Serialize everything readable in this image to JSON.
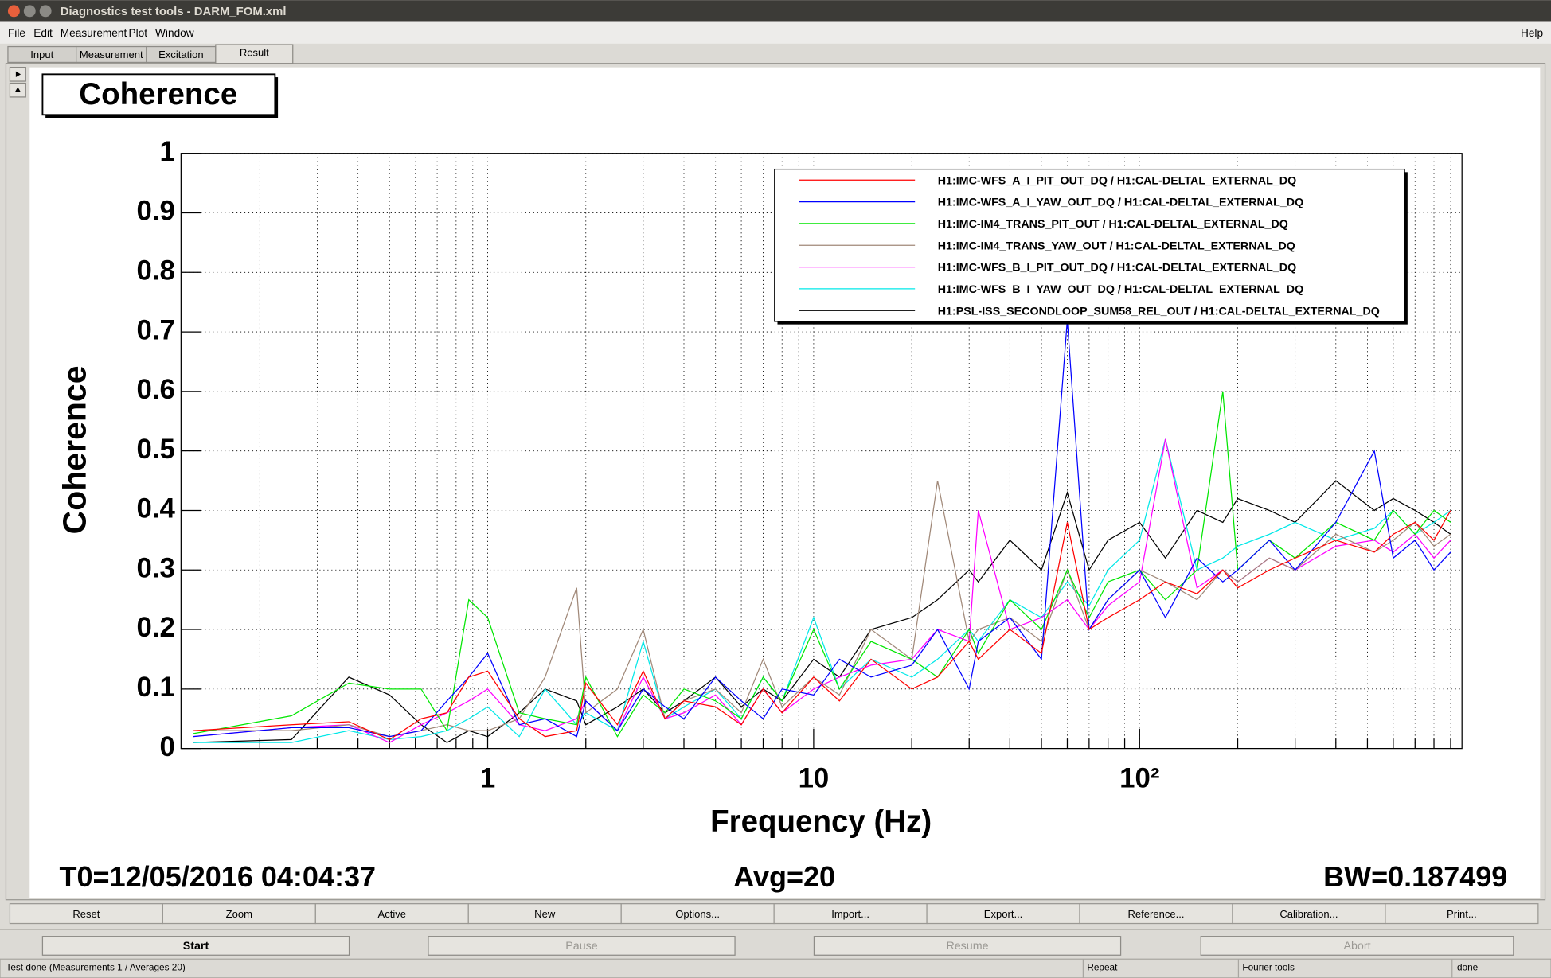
{
  "window": {
    "title": "Diagnostics test tools - DARM_FOM.xml"
  },
  "menu": [
    "File",
    "Edit",
    "Measurement",
    "Plot",
    "Window",
    "Help"
  ],
  "tabs": [
    "Input",
    "Measurement",
    "Excitation",
    "Result"
  ],
  "chart_data": {
    "type": "line",
    "title": "Coherence",
    "xlabel": "Frequency (Hz)",
    "ylabel": "Coherence",
    "log_x": true,
    "grid": true,
    "legend": "top-right",
    "xlim": [
      0.1146,
      975
    ],
    "xticks": [
      1,
      10,
      {
        "value": 100,
        "label": "10²"
      }
    ],
    "xminor_ticks": [
      0.2,
      0.3,
      0.4,
      0.5,
      0.6,
      0.7,
      0.8,
      0.9,
      2,
      3,
      4,
      5,
      6,
      7,
      8,
      9,
      20,
      30,
      40,
      50,
      60,
      70,
      80,
      90,
      200,
      300,
      400,
      500,
      600,
      700,
      800,
      900
    ],
    "ylim": [
      0,
      1
    ],
    "yticks": [
      0,
      0.1,
      0.2,
      0.3,
      0.4,
      0.5,
      0.6,
      0.7,
      0.8,
      0.9,
      1
    ],
    "x": [
      0.125,
      0.25,
      0.375,
      0.5,
      0.625,
      0.75,
      0.875,
      1,
      1.25,
      1.5,
      1.875,
      2,
      2.5,
      3,
      3.5,
      4,
      5,
      6,
      7,
      8,
      10,
      12,
      15,
      20,
      24,
      30,
      32,
      40,
      50,
      60,
      70,
      80,
      100,
      120,
      150,
      180,
      200,
      250,
      300,
      400,
      525,
      600,
      700,
      800,
      900
    ],
    "series": [
      {
        "name": "H1:IMC-WFS_A_I_PIT_OUT_DQ / H1:CAL-DELTAL_EXTERNAL_DQ",
        "color": "#ff0000",
        "values": [
          0.03,
          0.04,
          0.045,
          0.015,
          0.05,
          0.06,
          0.12,
          0.13,
          0.05,
          0.02,
          0.03,
          0.11,
          0.04,
          0.13,
          0.05,
          0.08,
          0.07,
          0.04,
          0.1,
          0.06,
          0.12,
          0.08,
          0.15,
          0.1,
          0.12,
          0.18,
          0.15,
          0.2,
          0.16,
          0.38,
          0.2,
          0.22,
          0.25,
          0.28,
          0.26,
          0.3,
          0.27,
          0.3,
          0.32,
          0.35,
          0.33,
          0.36,
          0.38,
          0.35,
          0.4
        ]
      },
      {
        "name": "H1:IMC-WFS_A_I_YAW_OUT_DQ / H1:CAL-DELTAL_EXTERNAL_DQ",
        "color": "#0000ff",
        "values": [
          0.02,
          0.035,
          0.035,
          0.02,
          0.03,
          0.08,
          0.12,
          0.16,
          0.04,
          0.05,
          0.02,
          0.08,
          0.03,
          0.1,
          0.07,
          0.05,
          0.12,
          0.08,
          0.05,
          0.1,
          0.09,
          0.15,
          0.12,
          0.14,
          0.2,
          0.1,
          0.18,
          0.22,
          0.15,
          0.72,
          0.2,
          0.25,
          0.3,
          0.22,
          0.32,
          0.28,
          0.3,
          0.35,
          0.3,
          0.38,
          0.5,
          0.32,
          0.35,
          0.3,
          0.33
        ]
      },
      {
        "name": "H1:IMC-IM4_TRANS_PIT_OUT / H1:CAL-DELTAL_EXTERNAL_DQ",
        "color": "#00e600",
        "values": [
          0.025,
          0.055,
          0.11,
          0.1,
          0.1,
          0.03,
          0.25,
          0.22,
          0.06,
          0.05,
          0.04,
          0.12,
          0.02,
          0.09,
          0.06,
          0.1,
          0.08,
          0.05,
          0.12,
          0.08,
          0.2,
          0.1,
          0.18,
          0.15,
          0.12,
          0.2,
          0.16,
          0.25,
          0.2,
          0.3,
          0.22,
          0.28,
          0.3,
          0.25,
          0.3,
          0.6,
          0.3,
          0.35,
          0.32,
          0.38,
          0.35,
          0.4,
          0.36,
          0.4,
          0.38
        ]
      },
      {
        "name": "H1:IMC-IM4_TRANS_YAW_OUT / H1:CAL-DELTAL_EXTERNAL_DQ",
        "color": "#a08878",
        "values": [
          0.03,
          0.03,
          0.04,
          0.02,
          0.03,
          0.04,
          0.03,
          0.03,
          0.05,
          0.12,
          0.27,
          0.06,
          0.1,
          0.2,
          0.05,
          0.08,
          0.1,
          0.06,
          0.15,
          0.07,
          0.12,
          0.09,
          0.2,
          0.15,
          0.45,
          0.18,
          0.2,
          0.22,
          0.18,
          0.3,
          0.2,
          0.25,
          0.3,
          0.28,
          0.25,
          0.3,
          0.28,
          0.32,
          0.3,
          0.36,
          0.33,
          0.35,
          0.38,
          0.34,
          0.36
        ]
      },
      {
        "name": "H1:IMC-WFS_B_I_PIT_OUT_DQ / H1:CAL-DELTAL_EXTERNAL_DQ",
        "color": "#ff00ff",
        "values": [
          0.02,
          0.035,
          0.04,
          0.01,
          0.04,
          0.06,
          0.08,
          0.1,
          0.04,
          0.03,
          0.05,
          0.08,
          0.03,
          0.12,
          0.05,
          0.06,
          0.09,
          0.04,
          0.1,
          0.06,
          0.1,
          0.12,
          0.14,
          0.15,
          0.2,
          0.18,
          0.4,
          0.2,
          0.22,
          0.25,
          0.2,
          0.24,
          0.28,
          0.52,
          0.27,
          0.3,
          0.28,
          0.32,
          0.3,
          0.34,
          0.35,
          0.33,
          0.36,
          0.32,
          0.35
        ]
      },
      {
        "name": "H1:IMC-WFS_B_I_YAW_OUT_DQ / H1:CAL-DELTAL_EXTERNAL_DQ",
        "color": "#00e8e8",
        "values": [
          0.01,
          0.01,
          0.03,
          0.015,
          0.02,
          0.03,
          0.05,
          0.07,
          0.02,
          0.1,
          0.04,
          0.06,
          0.03,
          0.18,
          0.05,
          0.07,
          0.1,
          0.05,
          0.12,
          0.08,
          0.22,
          0.1,
          0.15,
          0.12,
          0.15,
          0.2,
          0.18,
          0.25,
          0.22,
          0.28,
          0.24,
          0.3,
          0.35,
          0.52,
          0.3,
          0.32,
          0.34,
          0.36,
          0.38,
          0.35,
          0.37,
          0.4,
          0.36,
          0.38,
          0.4
        ]
      },
      {
        "name": "H1:PSL-ISS_SECONDLOOP_SUM58_REL_OUT / H1:CAL-DELTAL_EXTERNAL_DQ",
        "color": "#000000",
        "values": [
          0.01,
          0.015,
          0.12,
          0.09,
          0.04,
          0.01,
          0.03,
          0.02,
          0.06,
          0.1,
          0.08,
          0.04,
          0.07,
          0.1,
          0.06,
          0.08,
          0.12,
          0.07,
          0.1,
          0.08,
          0.15,
          0.12,
          0.2,
          0.22,
          0.25,
          0.3,
          0.28,
          0.35,
          0.3,
          0.43,
          0.3,
          0.35,
          0.38,
          0.32,
          0.4,
          0.38,
          0.42,
          0.4,
          0.38,
          0.45,
          0.4,
          0.42,
          0.4,
          0.38,
          0.36
        ]
      }
    ]
  },
  "plot_info": [
    "T0=12/05/2016 04:04:37",
    "Avg=20",
    "BW=0.187499"
  ],
  "plot_buttons": [
    "Reset",
    "Zoom",
    "Active",
    "New",
    "Options...",
    "Import...",
    "Export...",
    "Reference...",
    "Calibration...",
    "Print..."
  ],
  "run_buttons": [
    "Start",
    "Pause",
    "Resume",
    "Abort"
  ],
  "status": [
    "Test done (Measurements 1 / Averages 20)",
    "Repeat",
    "Fourier tools",
    "done"
  ]
}
